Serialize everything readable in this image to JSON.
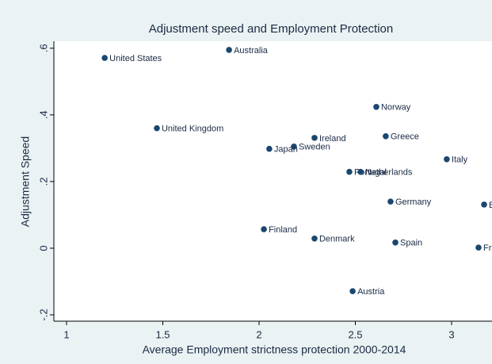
{
  "chart_data": {
    "type": "scatter",
    "title": "Adjustment speed and Employment Protection",
    "xlabel": "Average Employment strictness protection 2000-2014",
    "ylabel": "Adjustment Speed",
    "color": "#1a476f",
    "labels": [
      "United States",
      "Australia",
      "Norway",
      "United Kingdom",
      "Ireland",
      "Greece",
      "Sweden",
      "Japan",
      "Italy",
      "Portugal",
      "Netherlands",
      "Germany",
      "Belgium",
      "Finland",
      "Denmark",
      "Spain",
      "France",
      "Austria"
    ],
    "x": [
      1.198,
      1.844,
      2.609,
      1.469,
      2.288,
      2.658,
      2.181,
      2.053,
      2.975,
      2.469,
      2.527,
      2.683,
      3.169,
      2.025,
      2.288,
      2.708,
      3.14,
      2.486
    ],
    "values": [
      0.571,
      0.595,
      0.424,
      0.36,
      0.331,
      0.336,
      0.305,
      0.298,
      0.267,
      0.229,
      0.229,
      0.14,
      0.131,
      0.057,
      0.029,
      0.017,
      0.002,
      -0.129
    ],
    "xlim": [
      0.934,
      3.21
    ],
    "ylim": [
      -0.219,
      0.621
    ],
    "xticks": [
      1,
      1.5,
      2,
      2.5,
      3
    ],
    "yticks": [
      {
        "value": 0.6,
        "label": ".6"
      },
      {
        "value": 0.4,
        "label": ".4"
      },
      {
        "value": 0.2,
        "label": ".2"
      },
      0,
      {
        "value": -0.2,
        "label": "-.2"
      }
    ],
    "grid": false
  }
}
